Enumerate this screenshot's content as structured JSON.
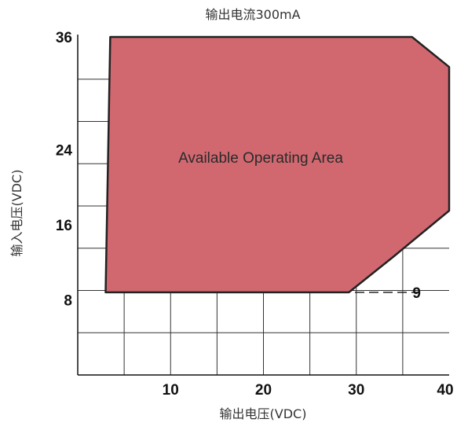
{
  "chart_data": {
    "type": "area",
    "title": "输出电流300mA",
    "xlabel": "输出电压(VDC)",
    "ylabel": "输入电压(VDC)",
    "xlim": [
      0,
      40
    ],
    "ylim": [
      0,
      36
    ],
    "x_ticks": [
      10,
      20,
      30,
      40
    ],
    "y_ticks": [
      8,
      16,
      24,
      36
    ],
    "grid": true,
    "area_label": "Available Operating Area",
    "area_color": "#d16870",
    "series": [
      {
        "points": [
          [
            3.5,
            36
          ],
          [
            36.0,
            36
          ],
          [
            40.0,
            32.8
          ],
          [
            40.0,
            17.5
          ],
          [
            34.0,
            12.6
          ],
          [
            29.2,
            8.8
          ],
          [
            3.0,
            8.8
          ]
        ]
      }
    ],
    "annotations": [
      {
        "text": "9",
        "x": 36.5,
        "y": 8.8
      }
    ]
  }
}
